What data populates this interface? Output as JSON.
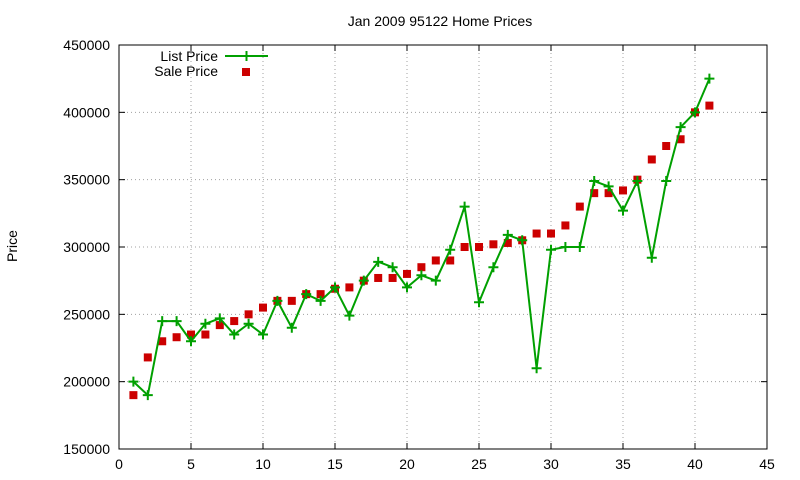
{
  "chart_data": {
    "type": "line",
    "title": "Jan 2009 95122 Home Prices",
    "xlabel": "",
    "ylabel": "Price",
    "xlim": [
      0,
      45
    ],
    "ylim": [
      150000,
      450000
    ],
    "x_ticks": [
      "0",
      "5",
      "10",
      "15",
      "20",
      "25",
      "30",
      "35",
      "40",
      "45"
    ],
    "y_ticks": [
      "150000",
      "200000",
      "250000",
      "300000",
      "350000",
      "400000",
      "450000"
    ],
    "grid": true,
    "legend_position": "top-left",
    "series": [
      {
        "name": "List Price",
        "style": "line-with-plus-markers",
        "color": "#00a000",
        "x": [
          1,
          2,
          3,
          4,
          5,
          6,
          7,
          8,
          9,
          10,
          11,
          12,
          13,
          14,
          15,
          16,
          17,
          18,
          19,
          20,
          21,
          22,
          23,
          24,
          25,
          26,
          27,
          28,
          29,
          30,
          31,
          32,
          33,
          34,
          35,
          36,
          37,
          38,
          39,
          40,
          41
        ],
        "y": [
          200000,
          190000,
          245000,
          245000,
          230000,
          243000,
          247000,
          235000,
          243000,
          235000,
          260000,
          240000,
          265000,
          260000,
          270000,
          249000,
          275000,
          289000,
          285000,
          270000,
          279000,
          275000,
          298000,
          330000,
          259000,
          285000,
          309000,
          305000,
          210000,
          298000,
          300000,
          300000,
          349000,
          345000,
          327000,
          349000,
          292000,
          349000,
          389000,
          400000,
          425000
        ]
      },
      {
        "name": "Sale Price",
        "style": "square-markers",
        "color": "#cc0000",
        "x": [
          1,
          2,
          3,
          4,
          5,
          6,
          7,
          8,
          9,
          10,
          11,
          12,
          13,
          14,
          15,
          16,
          17,
          18,
          19,
          20,
          21,
          22,
          23,
          24,
          25,
          26,
          27,
          28,
          29,
          30,
          31,
          32,
          33,
          34,
          35,
          36,
          37,
          38,
          39,
          40,
          41
        ],
        "y": [
          190000,
          218000,
          230000,
          233000,
          235000,
          235000,
          242000,
          245000,
          250000,
          255000,
          260000,
          260000,
          265000,
          265000,
          269000,
          270000,
          275000,
          277000,
          277000,
          280000,
          285000,
          290000,
          290000,
          300000,
          300000,
          302000,
          303000,
          305000,
          310000,
          310000,
          316000,
          330000,
          340000,
          340000,
          342000,
          350000,
          365000,
          375000,
          380000,
          400000,
          405000
        ]
      }
    ]
  }
}
